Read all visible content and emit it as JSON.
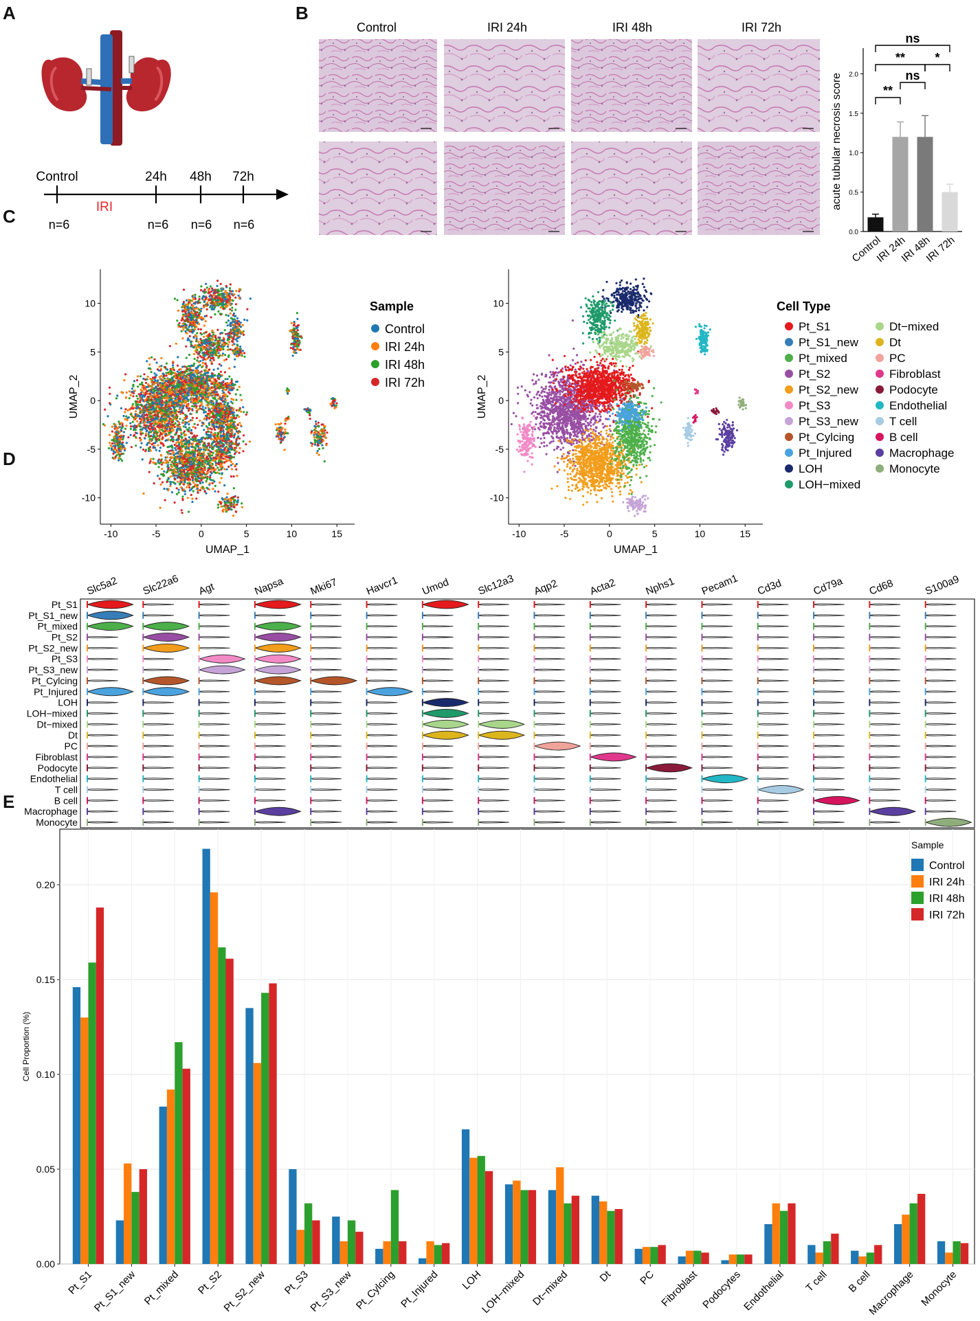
{
  "panels": {
    "a": "A",
    "b": "B",
    "c": "C",
    "d": "D",
    "e": "E"
  },
  "colors": {
    "control": "#1f77b4",
    "iri24": "#ff7f0e",
    "iri48": "#2ca02c",
    "iri72": "#d62728",
    "tissue_bg": "#dcc7dd",
    "tissue_fg": "#c2569a"
  },
  "panel_a": {
    "timeline_labels": [
      "Control",
      "24h",
      "48h",
      "72h"
    ],
    "iri_label": "IRI",
    "n_labels": [
      "n=6",
      "n=6",
      "n=6",
      "n=6"
    ]
  },
  "panel_b": {
    "column_titles": [
      "Control",
      "IRI 24h",
      "IRI 48h",
      "IRI 72h"
    ]
  },
  "panel_c": {
    "sample_legend_title": "Sample",
    "sample_legend": [
      "Control",
      "IRI 24h",
      "IRI 48h",
      "IRI 72h"
    ],
    "celltype_legend_title": "Cell Type",
    "xlabel": "UMAP_1",
    "ylabel": "UMAP_2",
    "xticks": [
      -10,
      -5,
      0,
      5,
      10,
      15
    ],
    "yticks": [
      -10,
      -5,
      0,
      5,
      10
    ]
  },
  "panel_d": {
    "genes": [
      "Slc5a2",
      "Slc22a6",
      "Agt",
      "Napsa",
      "Mki67",
      "Havcr1",
      "Umod",
      "Slc12a3",
      "Aqp2",
      "Acta2",
      "Nphs1",
      "Pecam1",
      "Cd3d",
      "Cd79a",
      "Cd68",
      "S100a9"
    ]
  },
  "cell_types": [
    {
      "name": "Pt_S1",
      "color": "#e41a1c"
    },
    {
      "name": "Pt_S1_new",
      "color": "#377eb8"
    },
    {
      "name": "Pt_mixed",
      "color": "#4daf4a"
    },
    {
      "name": "Pt_S2",
      "color": "#984ea3"
    },
    {
      "name": "Pt_S2_new",
      "color": "#f29d1b"
    },
    {
      "name": "Pt_S3",
      "color": "#f28ac6"
    },
    {
      "name": "Pt_S3_new",
      "color": "#c5a3d6"
    },
    {
      "name": "Pt_Cylcing",
      "color": "#b5562a"
    },
    {
      "name": "Pt_Injured",
      "color": "#4aa3df"
    },
    {
      "name": "LOH",
      "color": "#1a2a6c"
    },
    {
      "name": "LOH−mixed",
      "color": "#1f9a6a"
    },
    {
      "name": "Dt−mixed",
      "color": "#a9d68a"
    },
    {
      "name": "Dt",
      "color": "#dcb51c"
    },
    {
      "name": "PC",
      "color": "#f0a39a"
    },
    {
      "name": "Fibroblast",
      "color": "#e0388c"
    },
    {
      "name": "Podocyte",
      "color": "#8b1a3a"
    },
    {
      "name": "Endothelial",
      "color": "#22b7c4"
    },
    {
      "name": "T cell",
      "color": "#a6cbe3"
    },
    {
      "name": "B cell",
      "color": "#d6155f"
    },
    {
      "name": "Macrophage",
      "color": "#5b3fa0"
    },
    {
      "name": "Monocyte",
      "color": "#8fae7c"
    }
  ],
  "chart_data": [
    {
      "type": "bar",
      "title": "",
      "xlabel": "",
      "ylabel": "acute tubular necrosis score",
      "categories": [
        "Control",
        "IRI 24h",
        "IRI 48h",
        "IRI 72h"
      ],
      "values": [
        0.18,
        1.2,
        1.2,
        0.5
      ],
      "errors": [
        0.04,
        0.19,
        0.27,
        0.1
      ],
      "bar_colors": [
        "#111111",
        "#a6a6a6",
        "#7a7a7a",
        "#d9d9d9"
      ],
      "ylim": [
        0,
        2.1
      ],
      "yticks": [
        "0.0",
        "0.5",
        "1.0",
        "1.5",
        "2.0"
      ],
      "significance": [
        {
          "from": 0,
          "to": 1,
          "label": "**"
        },
        {
          "from": 1,
          "to": 2,
          "label": "ns"
        },
        {
          "from": 0,
          "to": 2,
          "label": "**"
        },
        {
          "from": 2,
          "to": 3,
          "label": "*"
        },
        {
          "from": 0,
          "to": 3,
          "label": "ns"
        }
      ]
    },
    {
      "type": "bar",
      "title": "",
      "xlabel": "",
      "ylabel": "Cell Proportion (%)",
      "legend_title": "Sample",
      "legend_position": "top-right",
      "grid": true,
      "categories": [
        "Pt_S1",
        "Pt_S1_new",
        "Pt_mixed",
        "Pt_S2",
        "Pt_S2_new",
        "Pt_S3",
        "Pt_S3_new",
        "Pt_Cylcing",
        "Pt_Injured",
        "LOH",
        "LOH−mixed",
        "Dt−mixed",
        "Dt",
        "PC",
        "Fibroblast",
        "Podocytes",
        "Endothelial",
        "T cell",
        "B cell",
        "Macrophage",
        "Monocyte"
      ],
      "ylim": [
        0,
        0.225
      ],
      "yticks": [
        "0.00",
        "0.05",
        "0.10",
        "0.15",
        "0.20"
      ],
      "series": [
        {
          "name": "Control",
          "values": [
            0.146,
            0.023,
            0.083,
            0.219,
            0.135,
            0.05,
            0.025,
            0.008,
            0.003,
            0.071,
            0.042,
            0.039,
            0.036,
            0.008,
            0.004,
            0.002,
            0.021,
            0.01,
            0.007,
            0.021,
            0.012
          ]
        },
        {
          "name": "IRI 24h",
          "values": [
            0.13,
            0.053,
            0.092,
            0.196,
            0.106,
            0.018,
            0.012,
            0.012,
            0.012,
            0.056,
            0.044,
            0.051,
            0.033,
            0.009,
            0.007,
            0.005,
            0.032,
            0.006,
            0.004,
            0.026,
            0.006
          ]
        },
        {
          "name": "IRI 48h",
          "values": [
            0.159,
            0.038,
            0.117,
            0.167,
            0.143,
            0.032,
            0.023,
            0.039,
            0.01,
            0.057,
            0.039,
            0.032,
            0.028,
            0.009,
            0.007,
            0.005,
            0.028,
            0.012,
            0.006,
            0.032,
            0.012
          ]
        },
        {
          "name": "IRI 72h",
          "values": [
            0.188,
            0.05,
            0.103,
            0.161,
            0.148,
            0.023,
            0.017,
            0.012,
            0.011,
            0.049,
            0.039,
            0.036,
            0.029,
            0.01,
            0.006,
            0.005,
            0.032,
            0.016,
            0.01,
            0.037,
            0.011
          ]
        }
      ]
    }
  ]
}
